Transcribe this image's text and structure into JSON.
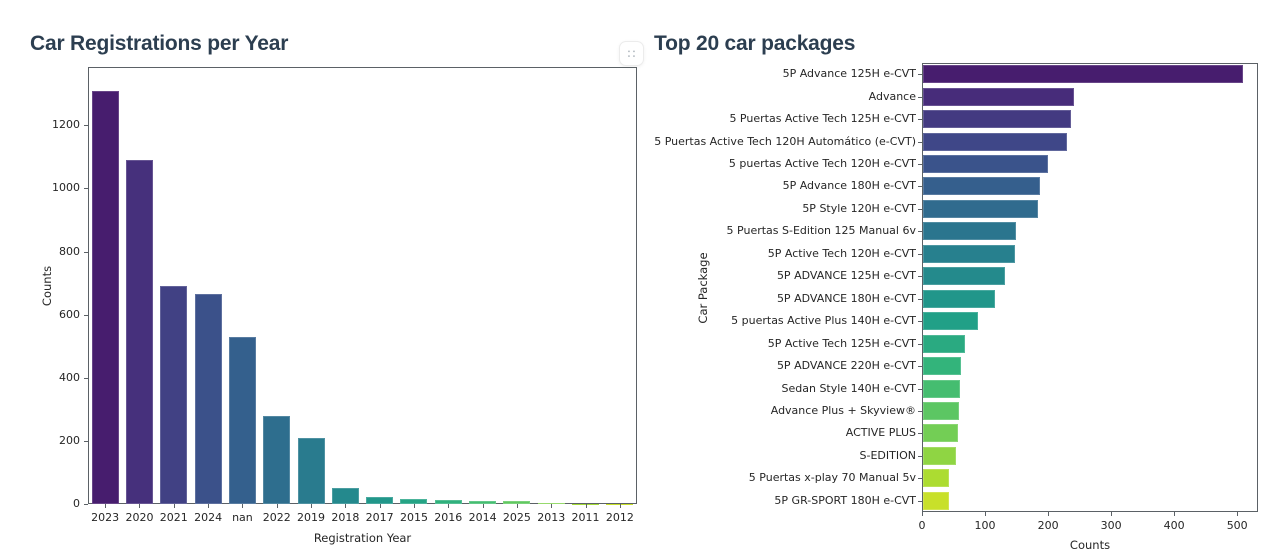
{
  "page": {
    "background": "#ffffff",
    "title_color": "#2c3e50"
  },
  "left_panel": {
    "title": "Car Registrations per Year"
  },
  "right_panel": {
    "title": "Top 20 car packages",
    "drag_handle_icon": "∷"
  },
  "chart_data": [
    {
      "type": "bar",
      "orientation": "vertical",
      "title": "Car Registrations per Year",
      "xlabel": "Registration Year",
      "ylabel": "Counts",
      "categories": [
        "2023",
        "2020",
        "2021",
        "2024",
        "nan",
        "2022",
        "2019",
        "2018",
        "2017",
        "2015",
        "2016",
        "2014",
        "2025",
        "2013",
        "2011",
        "2012"
      ],
      "values": [
        1310,
        1090,
        690,
        665,
        530,
        280,
        210,
        50,
        21,
        16,
        13,
        9,
        8,
        2,
        1,
        1
      ],
      "yticks": [
        0,
        200,
        400,
        600,
        800,
        1000,
        1200
      ],
      "ylim": [
        0,
        1385
      ],
      "grid": false,
      "legend": "none",
      "colors": [
        "#471d6e",
        "#46307c",
        "#414184",
        "#3b518a",
        "#34608d",
        "#2e6e8e",
        "#297b8e",
        "#24898d",
        "#21978a",
        "#25a485",
        "#30b17d",
        "#44bd71",
        "#60c860",
        "#80d24d",
        "#a4da36",
        "#c8e02a"
      ]
    },
    {
      "type": "bar",
      "orientation": "horizontal",
      "title": "Top 20 car packages",
      "xlabel": "Counts",
      "ylabel": "Car Package",
      "categories": [
        "5P Advance 125H e-CVT",
        "Advance",
        "5 Puertas Active Tech 125H e-CVT",
        "5 Puertas Active Tech 120H Automático (e-CVT)",
        "5 puertas Active Tech 120H e-CVT",
        "5P Advance 180H e-CVT",
        "5P Style 120H e-CVT",
        "5 Puertas S-Edition 125 Manual 6v",
        "5P Active Tech 120H e-CVT",
        "5P ADVANCE 125H e-CVT",
        "5P ADVANCE 180H e-CVT",
        "5 puertas Active Plus 140H e-CVT",
        "5P Active Tech 125H e-CVT",
        "5P ADVANCE 220H e-CVT",
        "Sedan Style 140H e-CVT",
        "Advance Plus + Skyview®",
        "ACTIVE PLUS",
        "S-EDITION",
        "5 Puertas x-play 70 Manual 5v",
        "5P GR-SPORT 180H e-CVT"
      ],
      "values": [
        507,
        240,
        235,
        228,
        198,
        186,
        183,
        147,
        146,
        130,
        115,
        87,
        67,
        61,
        59,
        57,
        56,
        52,
        41,
        41
      ],
      "xticks": [
        0,
        100,
        200,
        300,
        400,
        500
      ],
      "xlim": [
        0,
        533
      ],
      "grid": false,
      "legend": "none",
      "colors": [
        "#471d6e",
        "#472c7a",
        "#433a81",
        "#3f4788",
        "#3a538b",
        "#355f8d",
        "#306b8e",
        "#2b758e",
        "#27808e",
        "#248a8c",
        "#21968a",
        "#21a087",
        "#2aaa81",
        "#33b47b",
        "#45bd70",
        "#5cc663",
        "#73ce55",
        "#8fd543",
        "#acdc31",
        "#c8e02a"
      ]
    }
  ]
}
